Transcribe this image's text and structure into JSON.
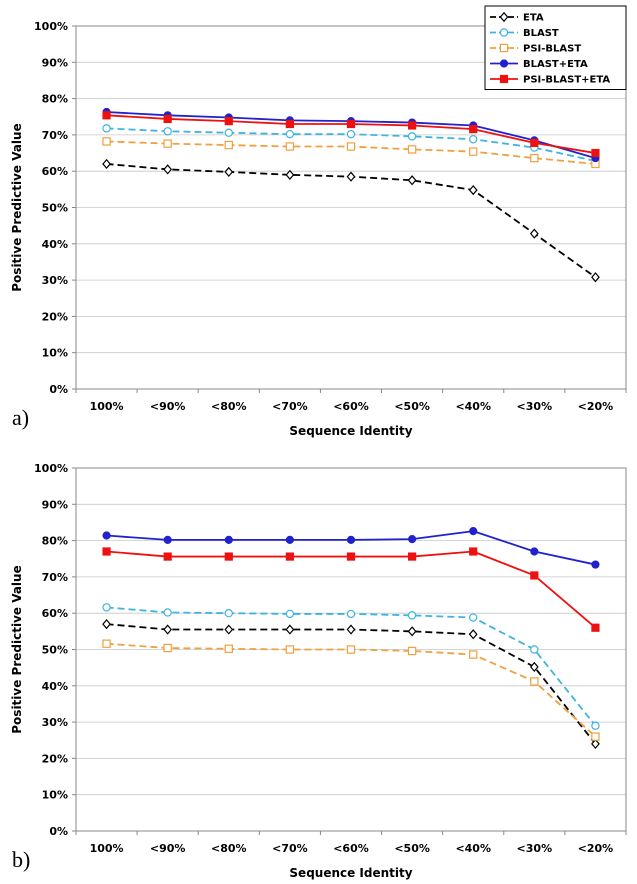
{
  "chart_data": [
    {
      "type": "line",
      "panel_label": "a)",
      "categories": [
        "100%",
        "<90%",
        "<80%",
        "<70%",
        "<60%",
        "<50%",
        "<40%",
        "<30%",
        "<20%"
      ],
      "ylabel": "Positive Predictive Value",
      "xlabel": "Sequence Identity",
      "ylim": [
        0,
        100
      ],
      "yticks": [
        "0%",
        "10%",
        "20%",
        "30%",
        "40%",
        "50%",
        "60%",
        "70%",
        "80%",
        "90%",
        "100%"
      ],
      "grid": "horizontal",
      "legend_position": "top-right",
      "series": [
        {
          "name": "ETA",
          "color": "#000000",
          "dash": true,
          "marker": "diamond-open",
          "values": [
            62,
            60.5,
            59.8,
            59,
            58.5,
            57.5,
            54.8,
            42.8,
            30.8
          ]
        },
        {
          "name": "BLAST",
          "color": "#3fb3e0",
          "dash": true,
          "marker": "circle-open",
          "values": [
            71.8,
            71,
            70.6,
            70.2,
            70.2,
            69.6,
            68.8,
            66.5,
            62.8
          ]
        },
        {
          "name": "PSI-BLAST",
          "color": "#f0a040",
          "dash": true,
          "marker": "square-open",
          "values": [
            68.2,
            67.6,
            67.2,
            66.8,
            66.8,
            66,
            65.4,
            63.6,
            62
          ]
        },
        {
          "name": "BLAST+ETA",
          "color": "#2222cc",
          "dash": false,
          "marker": "circle-filled",
          "values": [
            76.3,
            75.4,
            74.8,
            74,
            73.8,
            73.4,
            72.6,
            68.5,
            63.6
          ]
        },
        {
          "name": "PSI-BLAST+ETA",
          "color": "#ee1111",
          "dash": false,
          "marker": "square-filled",
          "values": [
            75.4,
            74.4,
            73.8,
            73,
            73,
            72.6,
            71.6,
            67.8,
            65
          ]
        }
      ]
    },
    {
      "type": "line",
      "panel_label": "b)",
      "categories": [
        "100%",
        "<90%",
        "<80%",
        "<70%",
        "<60%",
        "<50%",
        "<40%",
        "<30%",
        "<20%"
      ],
      "ylabel": "Positive Predictive Value",
      "xlabel": "Sequence Identity",
      "ylim": [
        0,
        100
      ],
      "yticks": [
        "0%",
        "10%",
        "20%",
        "30%",
        "40%",
        "50%",
        "60%",
        "70%",
        "80%",
        "90%",
        "100%"
      ],
      "grid": "horizontal",
      "legend_position": "none",
      "series": [
        {
          "name": "ETA",
          "color": "#000000",
          "dash": true,
          "marker": "diamond-open",
          "values": [
            57,
            55.5,
            55.5,
            55.5,
            55.5,
            55,
            54.2,
            45.2,
            24
          ]
        },
        {
          "name": "BLAST",
          "color": "#3fb3e0",
          "dash": true,
          "marker": "circle-open",
          "values": [
            61.6,
            60.2,
            60,
            59.8,
            59.8,
            59.4,
            58.8,
            50,
            29
          ]
        },
        {
          "name": "PSI-BLAST",
          "color": "#f0a040",
          "dash": true,
          "marker": "square-open",
          "values": [
            51.6,
            50.4,
            50.2,
            50,
            50,
            49.6,
            48.6,
            41.2,
            26
          ]
        },
        {
          "name": "BLAST+ETA",
          "color": "#2222cc",
          "dash": false,
          "marker": "circle-filled",
          "values": [
            81.4,
            80.2,
            80.2,
            80.2,
            80.2,
            80.4,
            82.6,
            77,
            73.4
          ]
        },
        {
          "name": "PSI-BLAST+ETA",
          "color": "#ee1111",
          "dash": false,
          "marker": "square-filled",
          "values": [
            77,
            75.6,
            75.6,
            75.6,
            75.6,
            75.6,
            77,
            70.4,
            56
          ]
        }
      ]
    }
  ]
}
